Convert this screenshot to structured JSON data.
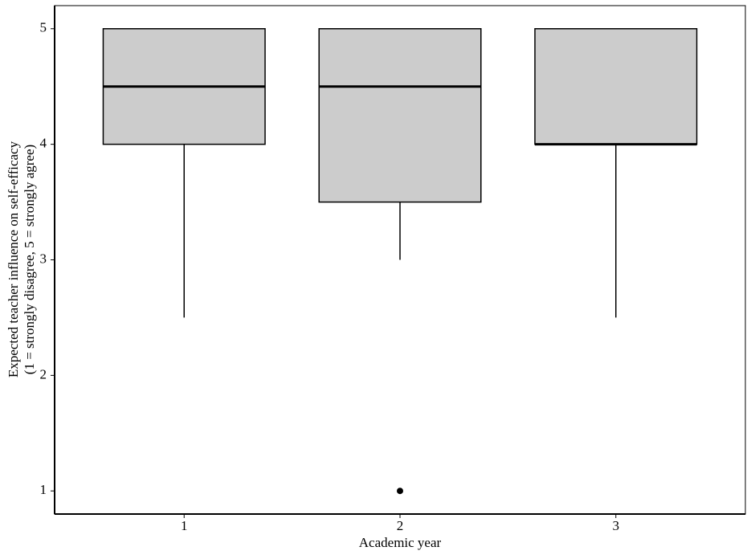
{
  "chart_data": {
    "type": "boxplot",
    "xlabel": "Academic year",
    "ylabel": [
      "Expected teacher influence on self-efficacy",
      "(1 = strongly disagree, 5 = strongly agree)"
    ],
    "categories": [
      "1",
      "2",
      "3"
    ],
    "boxes": [
      {
        "whisker_low": 2.5,
        "q1": 4,
        "median": 4.5,
        "q3": 5,
        "whisker_high": 5,
        "outliers": []
      },
      {
        "whisker_low": 3,
        "q1": 3.5,
        "median": 4.5,
        "q3": 5,
        "whisker_high": 5,
        "outliers": [
          1
        ]
      },
      {
        "whisker_low": 2.5,
        "q1": 4,
        "median": 4,
        "q3": 5,
        "whisker_high": 5,
        "outliers": []
      }
    ],
    "color": "#cccccc",
    "ylim": [
      0.8,
      5.2
    ],
    "yticks": [
      1,
      2,
      3,
      4,
      5
    ]
  }
}
